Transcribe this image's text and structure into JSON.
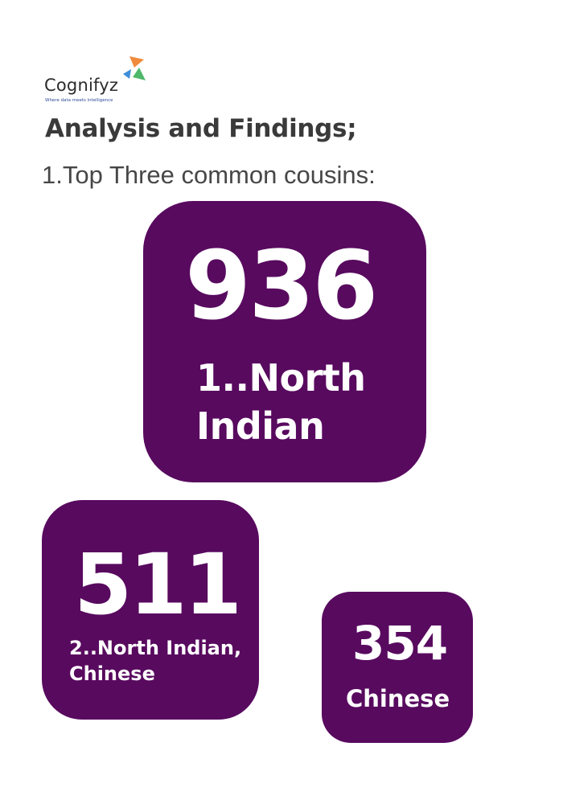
{
  "logo": {
    "wordmark": "Cognifyz",
    "tagline": "Where data meets intelligence",
    "colors": {
      "orange": "#f08a3c",
      "blue": "#3d8fd9",
      "green": "#4fb86a"
    }
  },
  "heading": "Analysis and Findings;",
  "subheading": "1.Top Three common cousins:",
  "card_color": "#580a5f",
  "cards": [
    {
      "number": "936",
      "label": "1..North\nIndian"
    },
    {
      "number": "511",
      "label": "2..North Indian,\nChinese"
    },
    {
      "number": "354",
      "label": "Chinese"
    }
  ]
}
